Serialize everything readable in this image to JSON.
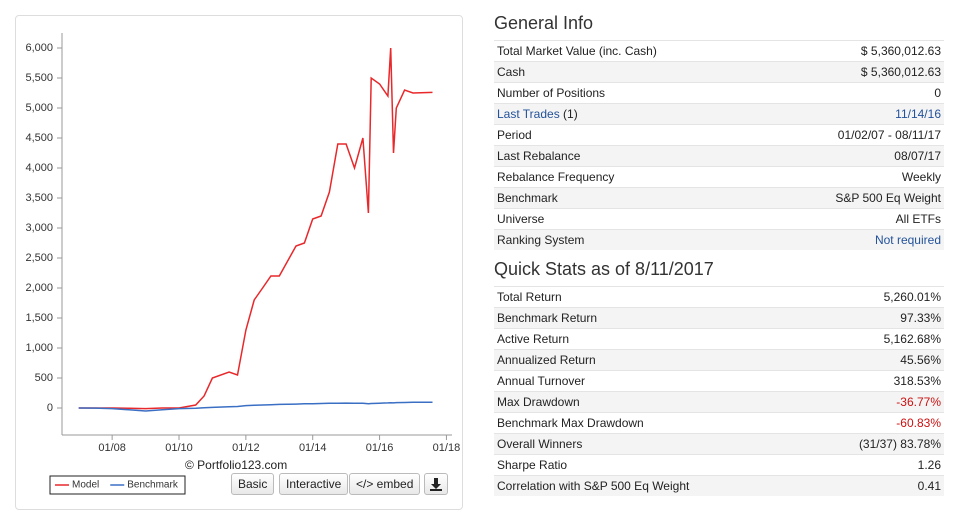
{
  "chart_data": {
    "type": "line",
    "x": [
      "01/07",
      "07/07",
      "01/08",
      "07/08",
      "01/09",
      "07/09",
      "01/10",
      "07/10",
      "10/10",
      "01/11",
      "07/11",
      "10/11",
      "01/12",
      "04/12",
      "07/12",
      "10/12",
      "01/13",
      "07/13",
      "10/13",
      "01/14",
      "04/14",
      "07/14",
      "10/14",
      "01/15",
      "04/15",
      "07/15",
      "09/15",
      "10/15",
      "01/16",
      "04/16",
      "05/16",
      "06/16",
      "07/16",
      "10/16",
      "01/17",
      "08/17"
    ],
    "series": [
      {
        "name": "Model",
        "color": "#e8282b",
        "values": [
          0,
          0,
          0,
          -5,
          -10,
          0,
          0,
          50,
          200,
          500,
          600,
          550,
          1300,
          1800,
          2000,
          2200,
          2200,
          2700,
          2750,
          3150,
          3200,
          3600,
          4400,
          4400,
          4000,
          4500,
          3250,
          5500,
          5400,
          5200,
          6000,
          4250,
          5000,
          5300,
          5250,
          5260
        ]
      },
      {
        "name": "Benchmark",
        "color": "#3a6fc4",
        "values": [
          0,
          -2,
          -10,
          -30,
          -50,
          -30,
          -10,
          -5,
          5,
          10,
          20,
          25,
          40,
          45,
          50,
          55,
          60,
          65,
          70,
          70,
          75,
          78,
          80,
          82,
          80,
          78,
          70,
          75,
          80,
          85,
          88,
          85,
          90,
          92,
          95,
          97
        ]
      }
    ],
    "xlim": [
      "07/06",
      "03/18"
    ],
    "xticks": [
      "01/08",
      "01/10",
      "01/12",
      "01/14",
      "01/16",
      "01/18"
    ],
    "ylim": [
      -450,
      6250
    ],
    "yticks": [
      0,
      500,
      {
        "value": 1000,
        "label": "1,000"
      },
      {
        "value": 1500,
        "label": "1,500"
      },
      {
        "value": 2000,
        "label": "2,000"
      },
      {
        "value": 2500,
        "label": "2,500"
      },
      {
        "value": 3000,
        "label": "3,000"
      },
      {
        "value": 3500,
        "label": "3,500"
      },
      {
        "value": 4000,
        "label": "4,000"
      },
      {
        "value": 4500,
        "label": "4,500"
      },
      {
        "value": 5000,
        "label": "5,000"
      },
      {
        "value": 5500,
        "label": "5,500"
      },
      {
        "value": 6000,
        "label": "6,000"
      }
    ],
    "grid": false
  },
  "credit": "© Portfolio123.com",
  "buttons": [
    "Basic",
    "Interactive",
    "</> embed"
  ],
  "general_info": {
    "title": "General Info",
    "rows": [
      {
        "label": "Total Market Value (inc. Cash)",
        "value": "$ 5,360,012.63"
      },
      {
        "label": "Cash",
        "value": "$ 5,360,012.63"
      },
      {
        "label": "Number of Positions",
        "value": "0"
      },
      {
        "label": "Last Trades",
        "count": "(1)",
        "value": "11/14/16"
      },
      {
        "label": "Period",
        "value": "01/02/07 - 08/11/17"
      },
      {
        "label": "Last Rebalance",
        "value": "08/07/17"
      },
      {
        "label": "Rebalance Frequency",
        "value": "Weekly"
      },
      {
        "label": "Benchmark",
        "value": "S&P 500 Eq Weight"
      },
      {
        "label": "Universe",
        "value": "All ETFs"
      },
      {
        "label": "Ranking System",
        "value": "Not required"
      }
    ]
  },
  "quick_stats": {
    "title": "Quick Stats as of 8/11/2017",
    "rows": [
      {
        "label": "Total Return",
        "value": "5,260.01%"
      },
      {
        "label": "Benchmark Return",
        "value": "97.33%"
      },
      {
        "label": "Active Return",
        "value": "5,162.68%"
      },
      {
        "label": "Annualized Return",
        "value": "45.56%"
      },
      {
        "label": "Annual Turnover",
        "value": "318.53%"
      },
      {
        "label": "Max Drawdown",
        "value": "-36.77%"
      },
      {
        "label": "Benchmark Max Drawdown",
        "value": "-60.83%"
      },
      {
        "label": "Overall Winners",
        "value": "(31/37) 83.78%"
      },
      {
        "label": "Sharpe Ratio",
        "value": "1.26"
      },
      {
        "label": "Correlation with S&P 500 Eq Weight",
        "value": "0.41"
      }
    ]
  }
}
